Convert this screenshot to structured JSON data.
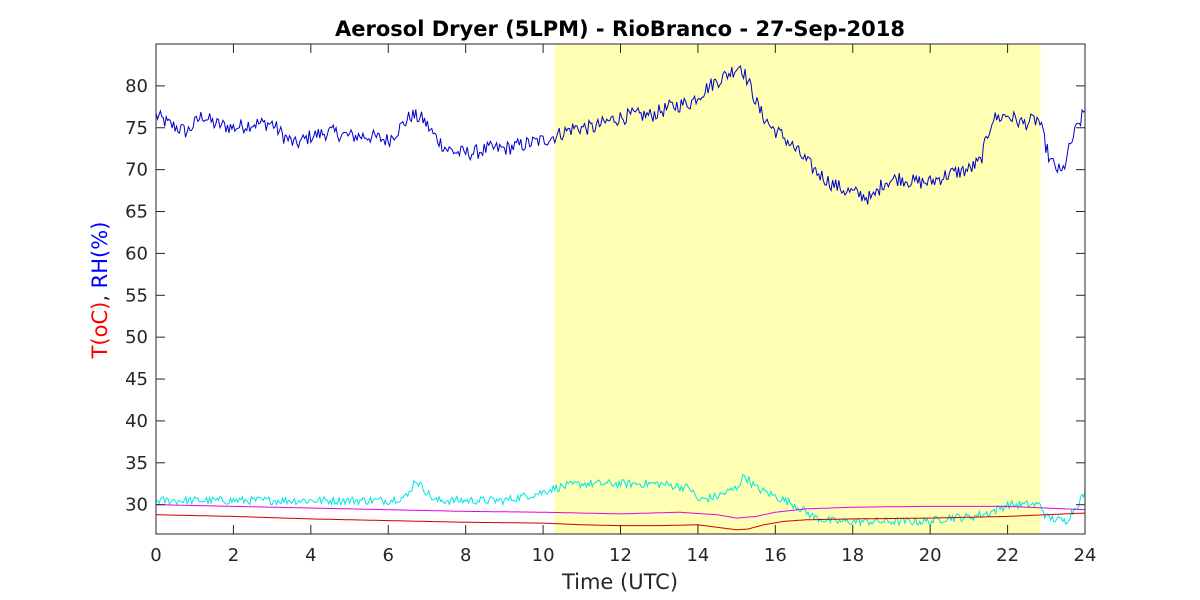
{
  "chart_data": {
    "type": "line",
    "title": "Aerosol Dryer (5LPM) - RioBranco - 27-Sep-2018",
    "xlabel": "Time (UTC)",
    "ylabel_parts": [
      {
        "text": "T(oC)",
        "color": "#ff0000"
      },
      {
        "text": ", ",
        "color": "#262626"
      },
      {
        "text": "RH(%)",
        "color": "#0000ff"
      }
    ],
    "xlim": [
      0,
      24
    ],
    "ylim": [
      26.5,
      85
    ],
    "xticks": [
      "0",
      "2",
      "4",
      "6",
      "8",
      "10",
      "12",
      "14",
      "16",
      "18",
      "20",
      "22",
      "24"
    ],
    "yticks": [
      "30",
      "35",
      "40",
      "45",
      "50",
      "55",
      "60",
      "65",
      "70",
      "75",
      "80"
    ],
    "grid": false,
    "highlight": {
      "x0": 10.3,
      "x1": 22.85,
      "color": "#ffffb3"
    },
    "series": [
      {
        "color": "#0000cc",
        "noise": 0.9,
        "x": [
          0,
          0.3,
          0.8,
          1.2,
          1.5,
          2.0,
          2.5,
          3.0,
          3.3,
          3.6,
          4.0,
          4.5,
          5.0,
          5.5,
          6.0,
          6.3,
          6.6,
          6.9,
          7.2,
          7.5,
          7.8,
          8.2,
          8.6,
          9.0,
          9.5,
          10.0,
          10.3,
          10.8,
          11.3,
          11.8,
          12.3,
          12.8,
          13.3,
          13.8,
          14.3,
          14.8,
          15.1,
          15.3,
          15.6,
          15.9,
          16.2,
          16.6,
          17.0,
          17.4,
          17.8,
          18.2,
          18.5,
          18.8,
          19.2,
          19.6,
          20.0,
          20.5,
          21.0,
          21.3,
          21.6,
          22.0,
          22.4,
          22.8,
          23.1,
          23.4,
          23.7,
          24.0
        ],
        "y": [
          76.5,
          75.5,
          74.5,
          76.5,
          75.5,
          75.0,
          75.5,
          75.5,
          74.0,
          73.0,
          74.0,
          74.5,
          74.0,
          74.0,
          73.5,
          75.0,
          76.5,
          76.0,
          74.0,
          72.5,
          72.0,
          72.0,
          72.5,
          72.5,
          73.0,
          73.5,
          74.0,
          75.0,
          75.0,
          76.0,
          76.5,
          76.5,
          77.5,
          78.0,
          80.0,
          81.5,
          82.5,
          80.5,
          77.0,
          75.0,
          74.0,
          72.0,
          70.0,
          68.5,
          67.5,
          67.0,
          66.5,
          68.5,
          69.0,
          68.5,
          68.5,
          69.5,
          70.0,
          71.0,
          76.0,
          76.5,
          75.5,
          76.0,
          71.0,
          69.5,
          74.0,
          77.0
        ]
      },
      {
        "color": "#00e5e5",
        "noise": 0.5,
        "x": [
          0,
          1.0,
          2.0,
          3.0,
          4.0,
          5.0,
          6.0,
          6.5,
          6.7,
          6.9,
          7.2,
          8.0,
          9.0,
          9.5,
          10.0,
          10.3,
          11.0,
          12.0,
          13.0,
          13.8,
          14.0,
          14.5,
          15.0,
          15.2,
          15.5,
          16.0,
          16.5,
          17.0,
          17.5,
          18.0,
          18.5,
          19.0,
          19.5,
          20.0,
          20.5,
          21.0,
          21.5,
          22.0,
          22.5,
          22.85,
          23.0,
          23.5,
          23.8,
          24.0
        ],
        "y": [
          30.5,
          30.5,
          30.5,
          30.5,
          30.5,
          30.5,
          30.5,
          31.0,
          33.0,
          32.0,
          30.5,
          30.5,
          30.5,
          31.0,
          31.5,
          32.0,
          32.5,
          32.5,
          32.5,
          32.0,
          30.5,
          31.0,
          32.0,
          33.5,
          32.0,
          31.0,
          30.0,
          28.5,
          28.0,
          28.0,
          28.0,
          28.0,
          28.0,
          28.0,
          28.5,
          28.5,
          29.0,
          30.0,
          30.0,
          30.0,
          28.5,
          28.0,
          30.0,
          31.5
        ]
      },
      {
        "color": "#e600e6",
        "noise": 0,
        "x": [
          0,
          2,
          4,
          6,
          8,
          10,
          12,
          13.5,
          14.5,
          15.0,
          15.5,
          16.0,
          16.8,
          18,
          20,
          22,
          23,
          24
        ],
        "y": [
          30.0,
          29.8,
          29.6,
          29.4,
          29.2,
          29.1,
          28.9,
          29.1,
          28.8,
          28.4,
          28.6,
          29.1,
          29.5,
          29.7,
          29.8,
          29.8,
          29.6,
          29.4
        ]
      },
      {
        "color": "#cc0000",
        "noise": 0,
        "x": [
          0,
          2,
          4,
          6,
          8,
          10,
          11,
          12,
          13,
          14,
          14.5,
          15.0,
          15.3,
          15.7,
          16.2,
          16.8,
          18,
          20,
          22,
          23,
          24
        ],
        "y": [
          28.8,
          28.6,
          28.3,
          28.1,
          27.9,
          27.8,
          27.6,
          27.5,
          27.5,
          27.6,
          27.3,
          27.0,
          27.1,
          27.6,
          28.0,
          28.2,
          28.3,
          28.4,
          28.6,
          28.8,
          29.0
        ]
      }
    ]
  }
}
